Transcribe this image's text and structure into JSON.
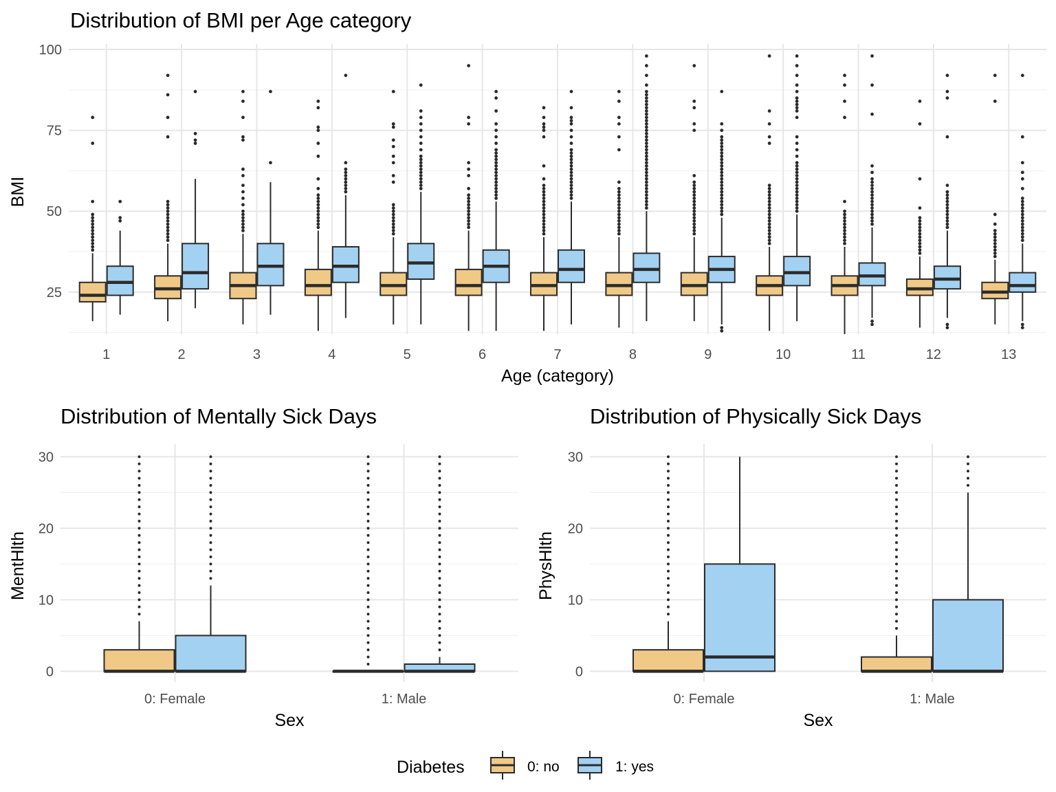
{
  "colors": {
    "no": "#f0c987",
    "yes": "#a3d1f2",
    "stroke": "#2b2b2b",
    "grid_major": "#e6e6e6",
    "grid_minor": "#f2f2f2"
  },
  "legend": {
    "title": "Diabetes",
    "items": [
      "0: no",
      "1: yes"
    ]
  },
  "chart_data": [
    {
      "type": "boxplot",
      "title": "Distribution of BMI per Age category",
      "xlabel": "Age (category)",
      "ylabel": "BMI",
      "ylim": [
        12,
        100
      ],
      "yticks": [
        25,
        50,
        75,
        100
      ],
      "categories": [
        "1",
        "2",
        "3",
        "4",
        "5",
        "6",
        "7",
        "8",
        "9",
        "10",
        "11",
        "12",
        "13"
      ],
      "series": [
        {
          "name": "0: no",
          "boxes": [
            {
              "lower": 16,
              "q1": 22,
              "median": 24,
              "q3": 28,
              "upper": 37,
              "outliers": [
                38,
                39,
                40,
                41,
                42,
                43,
                44,
                45,
                46,
                47,
                48,
                49,
                53,
                71,
                79
              ]
            },
            {
              "lower": 16,
              "q1": 23,
              "median": 26,
              "q3": 30,
              "upper": 40,
              "outliers": [
                41,
                42,
                43,
                44,
                45,
                46,
                47,
                48,
                49,
                50,
                51,
                52,
                53,
                73,
                79,
                86,
                92
              ]
            },
            {
              "lower": 15,
              "q1": 23,
              "median": 27,
              "q3": 31,
              "upper": 43,
              "outliers": [
                44,
                45,
                46,
                47,
                48,
                49,
                50,
                52,
                54,
                56,
                58,
                61,
                63,
                72,
                73,
                79,
                84,
                87
              ]
            },
            {
              "lower": 13,
              "q1": 24,
              "median": 27,
              "q3": 32,
              "upper": 44,
              "outliers": [
                45,
                46,
                47,
                48,
                49,
                50,
                51,
                52,
                53,
                54,
                55,
                57,
                60,
                67,
                71,
                75,
                76,
                82,
                84
              ]
            },
            {
              "lower": 15,
              "q1": 24,
              "median": 27,
              "q3": 31,
              "upper": 42,
              "outliers": [
                43,
                44,
                45,
                46,
                47,
                48,
                49,
                50,
                51,
                52,
                59,
                61,
                65,
                67,
                70,
                72,
                76,
                77,
                87
              ]
            },
            {
              "lower": 13,
              "q1": 24,
              "median": 27,
              "q3": 32,
              "upper": 44,
              "outliers": [
                45,
                46,
                47,
                48,
                49,
                50,
                51,
                52,
                53,
                54,
                55,
                57,
                61,
                63,
                65,
                77,
                79,
                95
              ]
            },
            {
              "lower": 13,
              "q1": 24,
              "median": 27,
              "q3": 31,
              "upper": 42,
              "outliers": [
                43,
                44,
                45,
                46,
                47,
                48,
                49,
                50,
                51,
                52,
                53,
                54,
                55,
                56,
                57,
                58,
                60,
                64,
                73,
                75,
                76,
                77,
                79,
                82
              ]
            },
            {
              "lower": 14,
              "q1": 24,
              "median": 27,
              "q3": 31,
              "upper": 42,
              "outliers": [
                43,
                44,
                45,
                46,
                47,
                48,
                49,
                50,
                51,
                52,
                53,
                54,
                55,
                56,
                57,
                59,
                69,
                73,
                77,
                79,
                84,
                87
              ]
            },
            {
              "lower": 16,
              "q1": 24,
              "median": 27,
              "q3": 31,
              "upper": 42,
              "outliers": [
                43,
                44,
                45,
                46,
                47,
                48,
                49,
                50,
                51,
                52,
                53,
                54,
                55,
                56,
                57,
                58,
                59,
                61,
                75,
                77,
                82,
                84,
                95
              ]
            },
            {
              "lower": 13,
              "q1": 24,
              "median": 27,
              "q3": 30,
              "upper": 39,
              "outliers": [
                40,
                41,
                42,
                43,
                44,
                45,
                46,
                47,
                48,
                49,
                50,
                51,
                52,
                53,
                54,
                55,
                56,
                57,
                58,
                71,
                73,
                77,
                81,
                98
              ]
            },
            {
              "lower": 12,
              "q1": 24,
              "median": 27,
              "q3": 30,
              "upper": 39,
              "outliers": [
                40,
                41,
                42,
                43,
                44,
                45,
                46,
                47,
                48,
                49,
                50,
                53,
                79,
                84,
                89,
                92
              ]
            },
            {
              "lower": 14,
              "q1": 24,
              "median": 26,
              "q3": 29,
              "upper": 36,
              "outliers": [
                37,
                38,
                39,
                40,
                41,
                42,
                43,
                44,
                45,
                46,
                47,
                48,
                51,
                60,
                77,
                84
              ]
            },
            {
              "lower": 15,
              "q1": 23,
              "median": 25,
              "q3": 28,
              "upper": 35,
              "outliers": [
                36,
                37,
                38,
                39,
                40,
                41,
                42,
                43,
                44,
                46,
                49,
                84,
                92
              ]
            }
          ]
        },
        {
          "name": "1: yes",
          "boxes": [
            {
              "lower": 18,
              "q1": 24,
              "median": 28,
              "q3": 33,
              "upper": 44,
              "outliers": [
                47,
                48,
                53
              ]
            },
            {
              "lower": 20,
              "q1": 26,
              "median": 31,
              "q3": 40,
              "upper": 60,
              "outliers": [
                71,
                72,
                74,
                87
              ]
            },
            {
              "lower": 18,
              "q1": 27,
              "median": 33,
              "q3": 40,
              "upper": 59,
              "outliers": [
                65,
                87
              ]
            },
            {
              "lower": 17,
              "q1": 28,
              "median": 33,
              "q3": 39,
              "upper": 55,
              "outliers": [
                56,
                57,
                58,
                59,
                60,
                61,
                62,
                63,
                65,
                92
              ]
            },
            {
              "lower": 15,
              "q1": 29,
              "median": 34,
              "q3": 40,
              "upper": 56,
              "outliers": [
                57,
                58,
                59,
                60,
                61,
                62,
                63,
                64,
                65,
                66,
                67,
                69,
                71,
                73,
                75,
                77,
                79,
                81,
                89
              ]
            },
            {
              "lower": 13,
              "q1": 28,
              "median": 33,
              "q3": 38,
              "upper": 53,
              "outliers": [
                54,
                55,
                56,
                57,
                58,
                59,
                60,
                61,
                62,
                63,
                64,
                65,
                66,
                67,
                68,
                69,
                71,
                73,
                75,
                77,
                81,
                85,
                87
              ]
            },
            {
              "lower": 15,
              "q1": 28,
              "median": 32,
              "q3": 38,
              "upper": 53,
              "outliers": [
                54,
                55,
                56,
                57,
                58,
                59,
                60,
                61,
                62,
                63,
                64,
                65,
                66,
                67,
                68,
                69,
                71,
                73,
                75,
                77,
                78,
                79,
                82,
                87
              ]
            },
            {
              "lower": 16,
              "q1": 28,
              "median": 32,
              "q3": 37,
              "upper": 50,
              "outliers": [
                51,
                52,
                53,
                54,
                55,
                56,
                57,
                58,
                59,
                60,
                61,
                62,
                63,
                64,
                65,
                66,
                67,
                68,
                69,
                70,
                71,
                72,
                73,
                74,
                75,
                76,
                77,
                78,
                79,
                80,
                81,
                82,
                83,
                84,
                85,
                86,
                87,
                89,
                92,
                95,
                98
              ]
            },
            {
              "lower": 15,
              "q1": 28,
              "median": 32,
              "q3": 36,
              "upper": 48,
              "outliers": [
                13,
                14,
                49,
                50,
                51,
                52,
                53,
                54,
                55,
                56,
                57,
                58,
                59,
                60,
                61,
                62,
                63,
                64,
                65,
                66,
                67,
                68,
                69,
                70,
                71,
                72,
                73,
                75,
                77,
                87
              ]
            },
            {
              "lower": 16,
              "q1": 27,
              "median": 31,
              "q3": 36,
              "upper": 49,
              "outliers": [
                50,
                51,
                52,
                53,
                54,
                55,
                56,
                57,
                58,
                59,
                60,
                61,
                62,
                63,
                64,
                65,
                67,
                69,
                71,
                73,
                79,
                81,
                82,
                83,
                84,
                85,
                87,
                89,
                92,
                95,
                98
              ]
            },
            {
              "lower": 17,
              "q1": 27,
              "median": 30,
              "q3": 34,
              "upper": 45,
              "outliers": [
                15,
                16,
                46,
                47,
                48,
                49,
                50,
                51,
                52,
                53,
                54,
                55,
                56,
                57,
                58,
                59,
                60,
                62,
                64,
                80,
                89,
                98
              ]
            },
            {
              "lower": 17,
              "q1": 26,
              "median": 29,
              "q3": 33,
              "upper": 44,
              "outliers": [
                14,
                15,
                45,
                46,
                47,
                48,
                49,
                50,
                51,
                52,
                53,
                54,
                55,
                56,
                58,
                73,
                85,
                87,
                92
              ]
            },
            {
              "lower": 16,
              "q1": 25,
              "median": 27,
              "q3": 31,
              "upper": 40,
              "outliers": [
                14,
                15,
                41,
                42,
                43,
                44,
                45,
                46,
                47,
                48,
                49,
                50,
                51,
                52,
                53,
                54,
                57,
                60,
                62,
                65,
                73,
                92
              ]
            }
          ]
        }
      ]
    },
    {
      "type": "boxplot",
      "title": "Distribution of Mentally Sick Days",
      "xlabel": "Sex",
      "ylabel": "MentHlth",
      "ylim": [
        -1.5,
        31
      ],
      "yticks": [
        0,
        10,
        20,
        30
      ],
      "categories": [
        "0: Female",
        "1: Male"
      ],
      "series": [
        {
          "name": "0: no",
          "boxes": [
            {
              "lower": 0,
              "q1": 0,
              "median": 0,
              "q3": 3,
              "upper": 7,
              "outlier_range": [
                8,
                30
              ]
            },
            {
              "lower": 0,
              "q1": 0,
              "median": 0,
              "q3": 0,
              "upper": 0,
              "outlier_range": [
                1,
                30
              ]
            }
          ]
        },
        {
          "name": "1: yes",
          "boxes": [
            {
              "lower": 0,
              "q1": 0,
              "median": 0,
              "q3": 5,
              "upper": 12,
              "outlier_range": [
                13,
                30
              ]
            },
            {
              "lower": 0,
              "q1": 0,
              "median": 0,
              "q3": 1,
              "upper": 2,
              "outlier_range": [
                3,
                30
              ]
            }
          ]
        }
      ]
    },
    {
      "type": "boxplot",
      "title": "Distribution of Physically Sick Days",
      "xlabel": "Sex",
      "ylabel": "PhysHlth",
      "ylim": [
        -1.5,
        31
      ],
      "yticks": [
        0,
        10,
        20,
        30
      ],
      "categories": [
        "0: Female",
        "1: Male"
      ],
      "series": [
        {
          "name": "0: no",
          "boxes": [
            {
              "lower": 0,
              "q1": 0,
              "median": 0,
              "q3": 3,
              "upper": 7,
              "outlier_range": [
                8,
                30
              ]
            },
            {
              "lower": 0,
              "q1": 0,
              "median": 0,
              "q3": 2,
              "upper": 5,
              "outlier_range": [
                6,
                30
              ]
            }
          ]
        },
        {
          "name": "1: yes",
          "boxes": [
            {
              "lower": 0,
              "q1": 0,
              "median": 2,
              "q3": 15,
              "upper": 30,
              "outlier_range": []
            },
            {
              "lower": 0,
              "q1": 0,
              "median": 0,
              "q3": 10,
              "upper": 25,
              "outlier_range": [
                26,
                30
              ]
            }
          ]
        }
      ]
    }
  ]
}
